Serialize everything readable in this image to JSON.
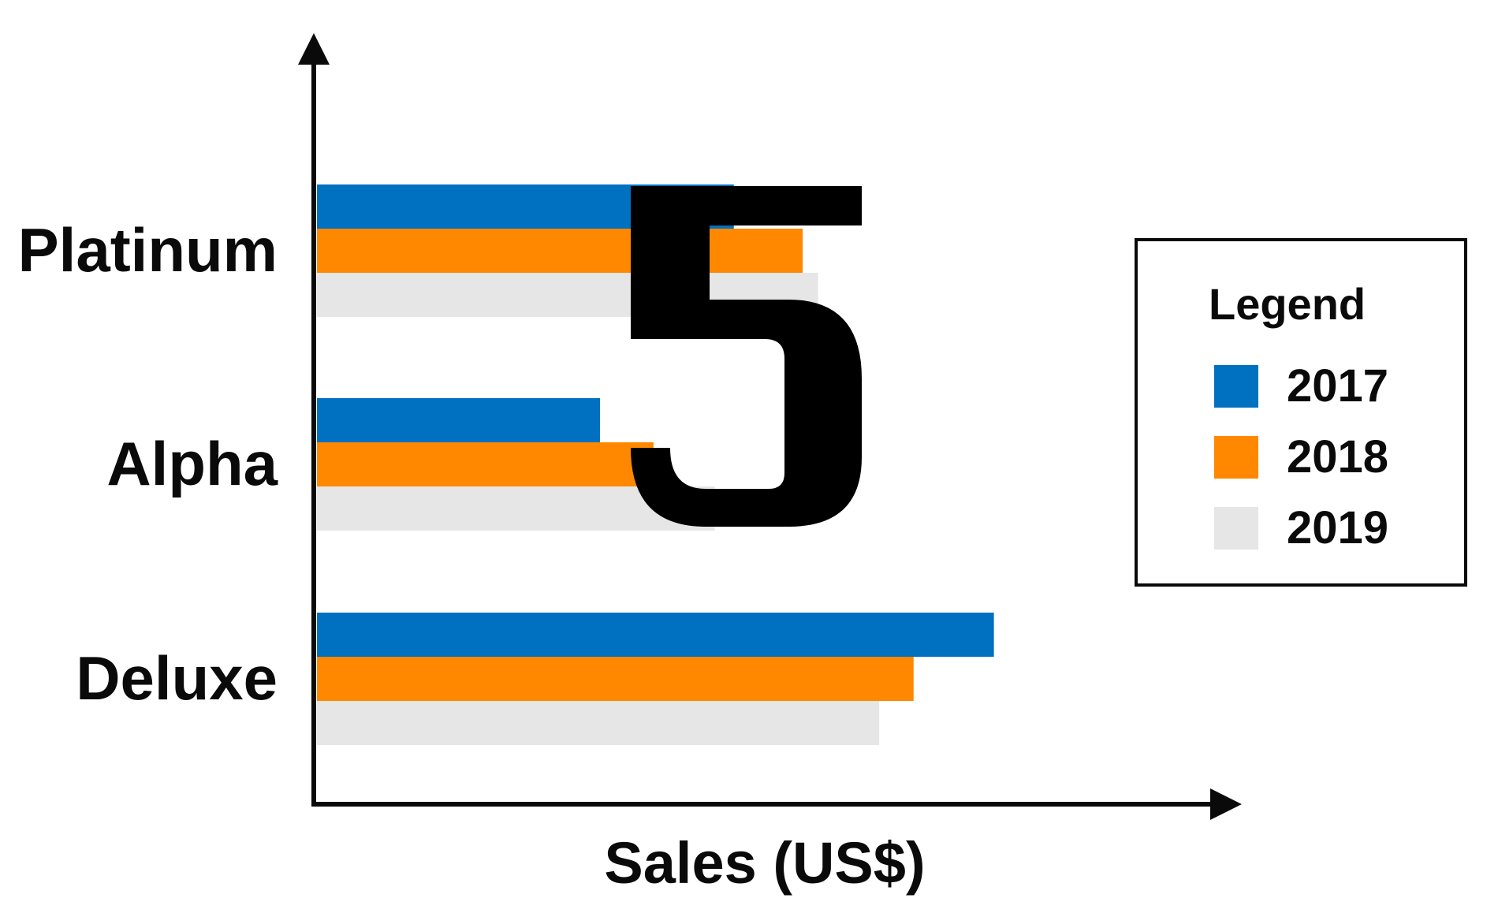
{
  "chart_data": {
    "type": "bar",
    "orientation": "horizontal",
    "categories": [
      "Platinum",
      "Alpha",
      "Deluxe"
    ],
    "series": [
      {
        "name": "2017",
        "values": [
          545,
          370,
          885
        ]
      },
      {
        "name": "2018",
        "values": [
          635,
          440,
          780
        ]
      },
      {
        "name": "2019",
        "values": [
          655,
          520,
          735
        ]
      }
    ],
    "xlabel": "Sales (US$)",
    "ylabel": "",
    "xlim": [
      0,
      1175
    ],
    "grid": false,
    "legend": {
      "title": "Legend",
      "position": "right"
    },
    "colors": {
      "2017": "#0070c0",
      "2018": "#ff8800",
      "2019": "#e6e6e6"
    },
    "overlay_glyph": "5"
  }
}
